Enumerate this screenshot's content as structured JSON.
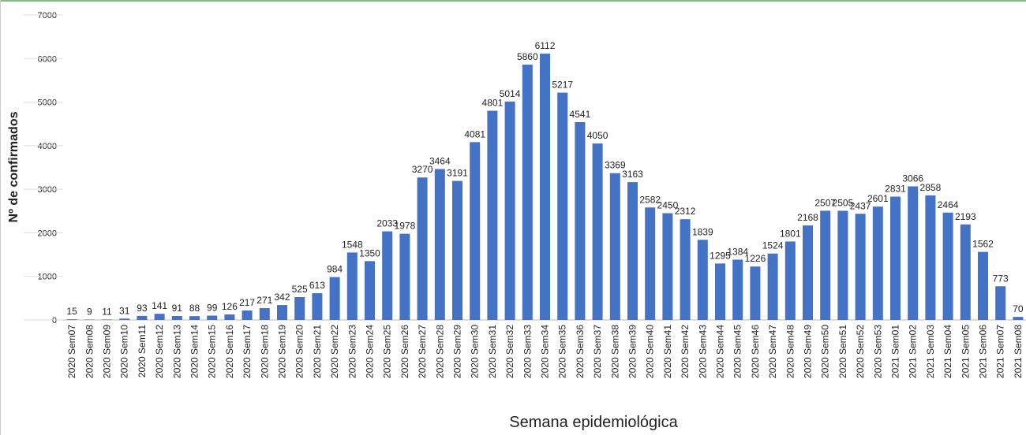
{
  "chart_data": {
    "type": "bar",
    "x_label": "Semana epidemiológica",
    "y_label": "Nº de confirmados",
    "categories": [
      "2020 Sem07",
      "2020 Sem08",
      "2020 Sem09",
      "2020 Sem10",
      "2020 Sem11",
      "2020 Sem12",
      "2020 Sem13",
      "2020 Sem14",
      "2020 Sem15",
      "2020 Sem16",
      "2020 Sem17",
      "2020 Sem18",
      "2020 Sem19",
      "2020 Sem20",
      "2020 Sem21",
      "2020 Sem22",
      "2020 Sem23",
      "2020 Sem24",
      "2020 Sem25",
      "2020 Sem26",
      "2020 Sem27",
      "2020 Sem28",
      "2020 Sem29",
      "2020 Sem30",
      "2020 Sem31",
      "2020 Sem32",
      "2020 Sem33",
      "2020 Sem34",
      "2020 Sem35",
      "2020 Sem36",
      "2020 Sem37",
      "2020 Sem38",
      "2020 Sem39",
      "2020 Sem40",
      "2020 Sem41",
      "2020 Sem42",
      "2020 Sem43",
      "2020 Sem44",
      "2020 Sem45",
      "2020 Sem46",
      "2020 Sem47",
      "2020 Sem48",
      "2020 Sem49",
      "2020 Sem50",
      "2020 Sem51",
      "2020 Sem52",
      "2020 Sem53",
      "2021 Sem01",
      "2021 Sem02",
      "2021 Sem03",
      "2021 Sem04",
      "2021 Sem05",
      "2021 Sem06",
      "2021 Sem07",
      "2021 Sem08"
    ],
    "values": [
      15,
      9,
      11,
      31,
      93,
      141,
      91,
      88,
      99,
      126,
      217,
      271,
      342,
      525,
      613,
      984,
      1548,
      1350,
      2033,
      1978,
      3270,
      3464,
      3191,
      4081,
      4801,
      5014,
      5860,
      6112,
      5217,
      4541,
      4050,
      3369,
      3163,
      2582,
      2450,
      2312,
      1839,
      1295,
      1384,
      1226,
      1524,
      1801,
      2168,
      2507,
      2505,
      2437,
      2601,
      2831,
      3066,
      2858,
      2464,
      2193,
      1562,
      773,
      70
    ],
    "color": "#4472c4",
    "ylim": [
      0,
      7000
    ],
    "yticks": [
      0,
      1000,
      2000,
      3000,
      4000,
      5000,
      6000,
      7000
    ],
    "grid": false
  }
}
